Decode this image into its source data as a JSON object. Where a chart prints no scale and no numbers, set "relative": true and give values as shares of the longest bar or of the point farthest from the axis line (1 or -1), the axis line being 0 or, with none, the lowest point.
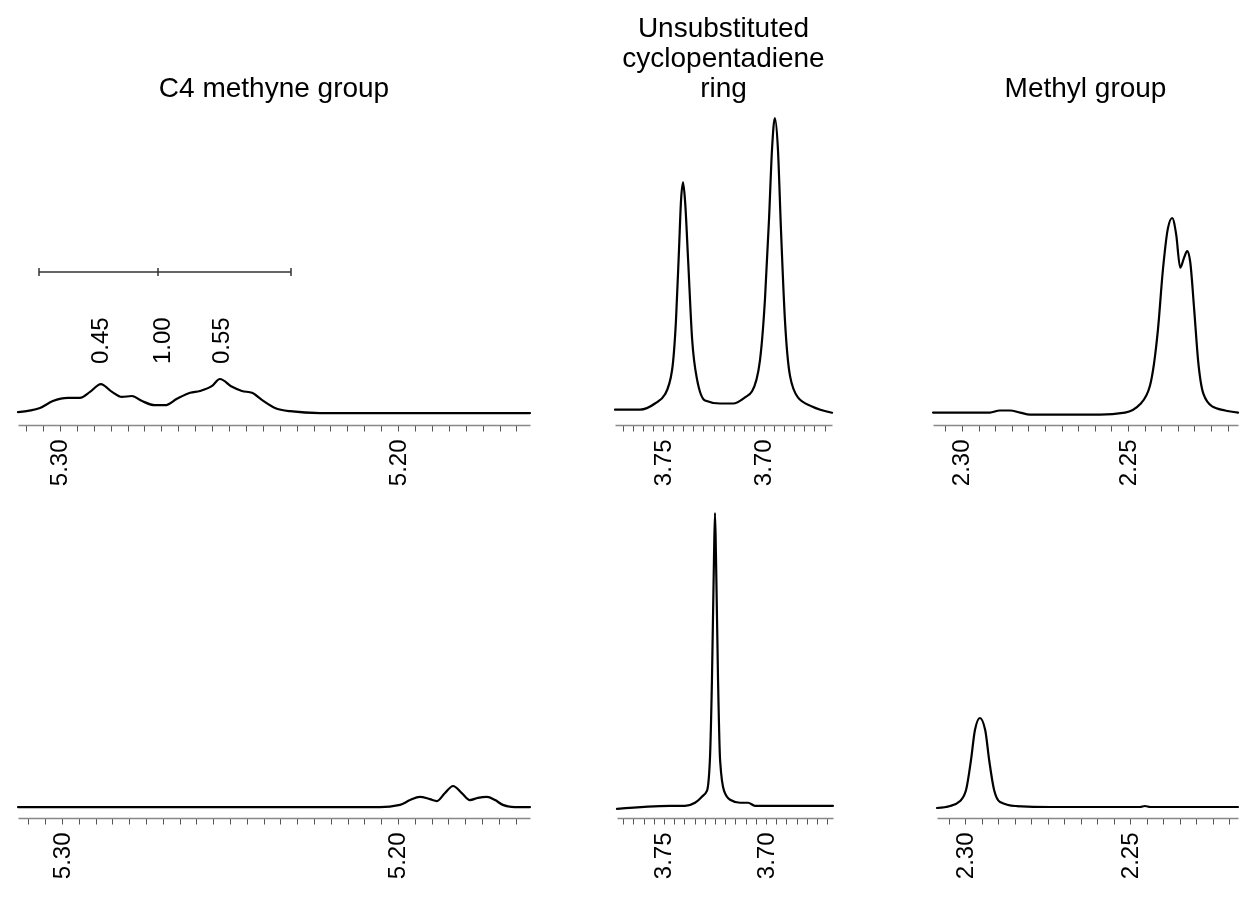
{
  "chart_data": [
    {
      "type": "line",
      "title": "C4 methyne group",
      "relative": true,
      "xlim": [
        5.3124,
        5.161
      ],
      "xticks": [
        {
          "value": 5.31,
          "label": null
        },
        {
          "value": 5.305,
          "label": null
        },
        {
          "value": 5.3,
          "label": "5.30"
        },
        {
          "value": 5.295,
          "label": null
        },
        {
          "value": 5.29,
          "label": null
        },
        {
          "value": 5.285,
          "label": null
        },
        {
          "value": 5.28,
          "label": null
        },
        {
          "value": 5.275,
          "label": null
        },
        {
          "value": 5.27,
          "label": null
        },
        {
          "value": 5.265,
          "label": null
        },
        {
          "value": 5.26,
          "label": null
        },
        {
          "value": 5.255,
          "label": null
        },
        {
          "value": 5.25,
          "label": null
        },
        {
          "value": 5.245,
          "label": null
        },
        {
          "value": 5.24,
          "label": null
        },
        {
          "value": 5.235,
          "label": null
        },
        {
          "value": 5.23,
          "label": null
        },
        {
          "value": 5.225,
          "label": null
        },
        {
          "value": 5.22,
          "label": null
        },
        {
          "value": 5.215,
          "label": null
        },
        {
          "value": 5.21,
          "label": null
        },
        {
          "value": 5.205,
          "label": null
        },
        {
          "value": 5.2,
          "label": "5.20"
        },
        {
          "value": 5.195,
          "label": null
        },
        {
          "value": 5.19,
          "label": null
        },
        {
          "value": 5.185,
          "label": null
        },
        {
          "value": 5.18,
          "label": null
        },
        {
          "value": 5.175,
          "label": null
        },
        {
          "value": 5.17,
          "label": null
        },
        {
          "value": 5.165,
          "label": null
        }
      ],
      "x": [
        5.3124,
        5.3059,
        5.3021,
        5.2976,
        5.2941,
        5.2911,
        5.2879,
        5.2846,
        5.2817,
        5.2787,
        5.2757,
        5.2719,
        5.2689,
        5.2654,
        5.2615,
        5.2586,
        5.255,
        5.2527,
        5.2491,
        5.2462,
        5.2432,
        5.2402,
        5.2364,
        5.232,
        5.2231,
        5.161
      ],
      "series": [
        {
          "color": "#000000",
          "values": [
            0.28,
            0.37,
            0.52,
            0.59,
            0.59,
            0.72,
            0.89,
            0.72,
            0.61,
            0.63,
            0.52,
            0.43,
            0.43,
            0.57,
            0.7,
            0.74,
            0.85,
            1.0,
            0.83,
            0.74,
            0.7,
            0.54,
            0.37,
            0.3,
            0.26,
            0.26
          ]
        }
      ],
      "annotations": [
        "0.45",
        "1.00",
        "0.55"
      ]
    },
    {
      "type": "line",
      "title": "Unsubstituted cyclopentadiene ring",
      "relative": true,
      "xlim": [
        3.7738,
        3.6663
      ],
      "xticks": [
        {
          "value": 3.77,
          "label": null
        },
        {
          "value": 3.765,
          "label": null
        },
        {
          "value": 3.76,
          "label": null
        },
        {
          "value": 3.755,
          "label": null
        },
        {
          "value": 3.75,
          "label": "3.75"
        },
        {
          "value": 3.745,
          "label": null
        },
        {
          "value": 3.74,
          "label": null
        },
        {
          "value": 3.735,
          "label": null
        },
        {
          "value": 3.73,
          "label": null
        },
        {
          "value": 3.725,
          "label": null
        },
        {
          "value": 3.72,
          "label": null
        },
        {
          "value": 3.715,
          "label": null
        },
        {
          "value": 3.71,
          "label": null
        },
        {
          "value": 3.705,
          "label": null
        },
        {
          "value": 3.7,
          "label": "3.70"
        },
        {
          "value": 3.695,
          "label": null
        },
        {
          "value": 3.69,
          "label": null
        },
        {
          "value": 3.685,
          "label": null
        },
        {
          "value": 3.68,
          "label": null
        },
        {
          "value": 3.675,
          "label": null
        },
        {
          "value": 3.67,
          "label": null
        }
      ],
      "x": [
        3.7738,
        3.7614,
        3.754,
        3.749,
        3.7455,
        3.7436,
        3.7421,
        3.7411,
        3.7401,
        3.7391,
        3.7376,
        3.7356,
        3.7332,
        3.7292,
        3.7218,
        3.7153,
        3.7094,
        3.7059,
        3.702,
        3.6995,
        3.6975,
        3.696,
        3.6946,
        3.6931,
        3.6916,
        3.6896,
        3.6871,
        3.6832,
        3.6762,
        3.6663
      ],
      "series": [
        {
          "color": "#000000",
          "values": [
            0.05,
            0.05,
            0.07,
            0.1,
            0.18,
            0.34,
            0.57,
            0.73,
            0.79,
            0.73,
            0.54,
            0.28,
            0.15,
            0.08,
            0.07,
            0.07,
            0.09,
            0.11,
            0.21,
            0.41,
            0.67,
            0.9,
            1.0,
            0.9,
            0.64,
            0.34,
            0.16,
            0.09,
            0.06,
            0.04
          ]
        }
      ]
    },
    {
      "type": "line",
      "title": "Methyl group",
      "relative": true,
      "xlim": [
        2.3087,
        2.2169
      ],
      "xticks": [
        {
          "value": 2.305,
          "label": null
        },
        {
          "value": 2.3,
          "label": "2.30"
        },
        {
          "value": 2.295,
          "label": null
        },
        {
          "value": 2.29,
          "label": null
        },
        {
          "value": 2.285,
          "label": null
        },
        {
          "value": 2.28,
          "label": null
        },
        {
          "value": 2.275,
          "label": null
        },
        {
          "value": 2.27,
          "label": null
        },
        {
          "value": 2.265,
          "label": null
        },
        {
          "value": 2.26,
          "label": null
        },
        {
          "value": 2.255,
          "label": null
        },
        {
          "value": 2.25,
          "label": "2.25"
        },
        {
          "value": 2.245,
          "label": null
        },
        {
          "value": 2.24,
          "label": null
        },
        {
          "value": 2.235,
          "label": null
        },
        {
          "value": 2.23,
          "label": null
        },
        {
          "value": 2.225,
          "label": null
        },
        {
          "value": 2.22,
          "label": null
        }
      ],
      "x": [
        2.3087,
        2.2916,
        2.2886,
        2.2855,
        2.2825,
        2.2795,
        2.2584,
        2.2509,
        2.2464,
        2.2434,
        2.241,
        2.2395,
        2.238,
        2.2367,
        2.2355,
        2.2343,
        2.2331,
        2.2322,
        2.2313,
        2.2301,
        2.2289,
        2.2273,
        2.2247,
        2.2208,
        2.2169
      ],
      "series": [
        {
          "color": "#000000",
          "values": [
            0.06,
            0.06,
            0.07,
            0.07,
            0.06,
            0.05,
            0.05,
            0.06,
            0.1,
            0.19,
            0.46,
            0.75,
            0.95,
            1.0,
            0.92,
            0.76,
            0.81,
            0.84,
            0.79,
            0.56,
            0.31,
            0.15,
            0.09,
            0.07,
            0.06
          ]
        }
      ]
    },
    {
      "type": "line",
      "relative": true,
      "xlim": [
        5.3131,
        5.1607
      ],
      "xticks": [
        {
          "value": 5.31,
          "label": null
        },
        {
          "value": 5.305,
          "label": null
        },
        {
          "value": 5.3,
          "label": "5.30"
        },
        {
          "value": 5.295,
          "label": null
        },
        {
          "value": 5.29,
          "label": null
        },
        {
          "value": 5.285,
          "label": null
        },
        {
          "value": 5.28,
          "label": null
        },
        {
          "value": 5.275,
          "label": null
        },
        {
          "value": 5.27,
          "label": null
        },
        {
          "value": 5.265,
          "label": null
        },
        {
          "value": 5.26,
          "label": null
        },
        {
          "value": 5.255,
          "label": null
        },
        {
          "value": 5.25,
          "label": null
        },
        {
          "value": 5.245,
          "label": null
        },
        {
          "value": 5.24,
          "label": null
        },
        {
          "value": 5.235,
          "label": null
        },
        {
          "value": 5.23,
          "label": null
        },
        {
          "value": 5.225,
          "label": null
        },
        {
          "value": 5.22,
          "label": null
        },
        {
          "value": 5.215,
          "label": null
        },
        {
          "value": 5.21,
          "label": null
        },
        {
          "value": 5.205,
          "label": null
        },
        {
          "value": 5.2,
          "label": "5.20"
        },
        {
          "value": 5.195,
          "label": null
        },
        {
          "value": 5.19,
          "label": null
        },
        {
          "value": 5.185,
          "label": null
        },
        {
          "value": 5.18,
          "label": null
        },
        {
          "value": 5.175,
          "label": null
        },
        {
          "value": 5.17,
          "label": null
        },
        {
          "value": 5.165,
          "label": null
        }
      ],
      "x": [
        5.3131,
        5.2054,
        5.1994,
        5.1964,
        5.1935,
        5.1905,
        5.1884,
        5.186,
        5.1836,
        5.181,
        5.1786,
        5.1762,
        5.1735,
        5.1711,
        5.1688,
        5.1652,
        5.1607
      ],
      "series": [
        {
          "color": "#000000",
          "values": [
            0.34,
            0.34,
            0.41,
            0.56,
            0.66,
            0.59,
            0.53,
            0.78,
            1.0,
            0.78,
            0.56,
            0.63,
            0.66,
            0.56,
            0.41,
            0.34,
            0.34
          ]
        }
      ]
    },
    {
      "type": "line",
      "relative": true,
      "xlim": [
        3.773,
        3.6672
      ],
      "xticks": [
        {
          "value": 3.77,
          "label": null
        },
        {
          "value": 3.765,
          "label": null
        },
        {
          "value": 3.76,
          "label": null
        },
        {
          "value": 3.755,
          "label": null
        },
        {
          "value": 3.75,
          "label": "3.75"
        },
        {
          "value": 3.745,
          "label": null
        },
        {
          "value": 3.74,
          "label": null
        },
        {
          "value": 3.735,
          "label": null
        },
        {
          "value": 3.73,
          "label": null
        },
        {
          "value": 3.725,
          "label": null
        },
        {
          "value": 3.72,
          "label": null
        },
        {
          "value": 3.715,
          "label": null
        },
        {
          "value": 3.71,
          "label": null
        },
        {
          "value": 3.705,
          "label": null
        },
        {
          "value": 3.7,
          "label": "3.70"
        },
        {
          "value": 3.695,
          "label": null
        },
        {
          "value": 3.69,
          "label": null
        },
        {
          "value": 3.685,
          "label": null
        },
        {
          "value": 3.68,
          "label": null
        },
        {
          "value": 3.675,
          "label": null
        },
        {
          "value": 3.67,
          "label": null
        }
      ],
      "x": [
        3.773,
        3.7471,
        3.7422,
        3.7397,
        3.7348,
        3.7314,
        3.7289,
        3.7275,
        3.7265,
        3.7255,
        3.725,
        3.7245,
        3.7235,
        3.7225,
        3.7206,
        3.7176,
        3.7127,
        3.7088,
        3.7054,
        3.6882,
        3.6672
      ],
      "series": [
        {
          "color": "#000000",
          "values": [
            0.03,
            0.04,
            0.04,
            0.04,
            0.05,
            0.07,
            0.09,
            0.19,
            0.45,
            0.85,
            1.0,
            0.85,
            0.45,
            0.19,
            0.09,
            0.06,
            0.05,
            0.05,
            0.04,
            0.04,
            0.04
          ]
        }
      ]
    },
    {
      "type": "line",
      "relative": true,
      "xlim": [
        2.3085,
        2.2173
      ],
      "xticks": [
        {
          "value": 2.305,
          "label": null
        },
        {
          "value": 2.3,
          "label": "2.30"
        },
        {
          "value": 2.295,
          "label": null
        },
        {
          "value": 2.29,
          "label": null
        },
        {
          "value": 2.285,
          "label": null
        },
        {
          "value": 2.28,
          "label": null
        },
        {
          "value": 2.275,
          "label": null
        },
        {
          "value": 2.27,
          "label": null
        },
        {
          "value": 2.265,
          "label": null
        },
        {
          "value": 2.26,
          "label": null
        },
        {
          "value": 2.255,
          "label": null
        },
        {
          "value": 2.25,
          "label": "2.25"
        },
        {
          "value": 2.245,
          "label": null
        },
        {
          "value": 2.24,
          "label": null
        },
        {
          "value": 2.235,
          "label": null
        },
        {
          "value": 2.23,
          "label": null
        },
        {
          "value": 2.225,
          "label": null
        },
        {
          "value": 2.22,
          "label": null
        }
      ],
      "x": [
        2.3085,
        2.3045,
        2.3015,
        2.2997,
        2.2982,
        2.297,
        2.2955,
        2.2939,
        2.2927,
        2.2912,
        2.2894,
        2.2848,
        2.2742,
        2.247,
        2.2455,
        2.2439,
        2.2173
      ],
      "series": [
        {
          "color": "#000000",
          "values": [
            0.1,
            0.12,
            0.17,
            0.28,
            0.58,
            0.88,
            1.0,
            0.88,
            0.58,
            0.28,
            0.16,
            0.12,
            0.11,
            0.11,
            0.12,
            0.11,
            0.11
          ]
        }
      ]
    }
  ]
}
